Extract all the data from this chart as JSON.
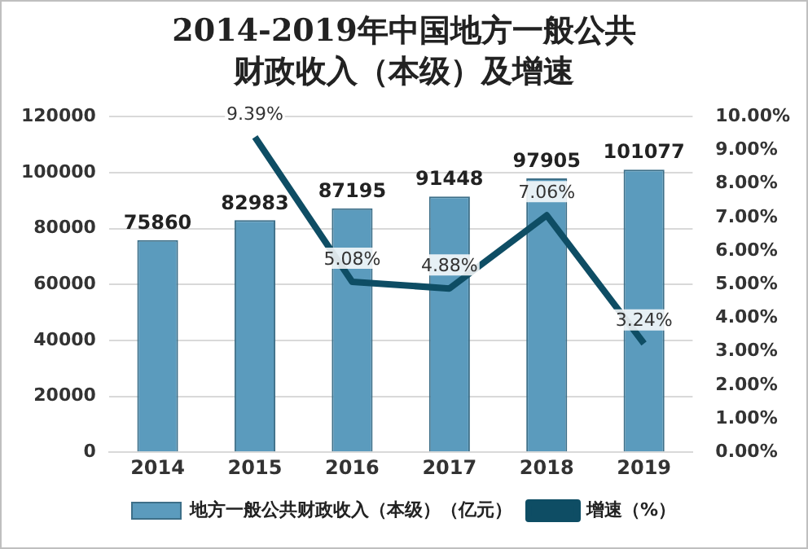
{
  "chart_data": {
    "type": "bar",
    "title": "2014-2019年中国地方一般公共财政收入（本级）及增速",
    "categories": [
      "2014",
      "2015",
      "2016",
      "2017",
      "2018",
      "2019"
    ],
    "series": [
      {
        "name": "地方一般公共财政收入（本级）（亿元）",
        "color": "#5b9bbd",
        "values": [
          75860,
          82983,
          87195,
          91448,
          97905,
          101077
        ],
        "value_labels": [
          "75860",
          "82983",
          "87195",
          "91448",
          "97905",
          "101077"
        ]
      },
      {
        "name": "增速（%）",
        "type": "line",
        "axis": "y2",
        "color": "#0e4d64",
        "values": [
          null,
          9.39,
          5.08,
          4.88,
          7.06,
          3.24
        ],
        "value_labels": [
          null,
          "9.39%",
          "5.08%",
          "4.88%",
          "7.06%",
          "3.24%"
        ]
      }
    ],
    "ylim": [
      0,
      120000
    ],
    "yticks": [
      0,
      20000,
      40000,
      60000,
      80000,
      100000,
      120000
    ],
    "y2lim": [
      0,
      10
    ],
    "y2ticks": [
      {
        "value": 0,
        "label": "0.00%"
      },
      {
        "value": 1,
        "label": "1.00%"
      },
      {
        "value": 2,
        "label": "2.00%"
      },
      {
        "value": 3,
        "label": "3.00%"
      },
      {
        "value": 4,
        "label": "4.00%"
      },
      {
        "value": 5,
        "label": "5.00%"
      },
      {
        "value": 6,
        "label": "6.00%"
      },
      {
        "value": 7,
        "label": "7.00%"
      },
      {
        "value": 8,
        "label": "8.00%"
      },
      {
        "value": 9,
        "label": "9.00%"
      },
      {
        "value": 10,
        "label": "10.00%"
      }
    ],
    "grid": "y",
    "legend": "bottom",
    "marker": "none",
    "line_style": "solid"
  }
}
